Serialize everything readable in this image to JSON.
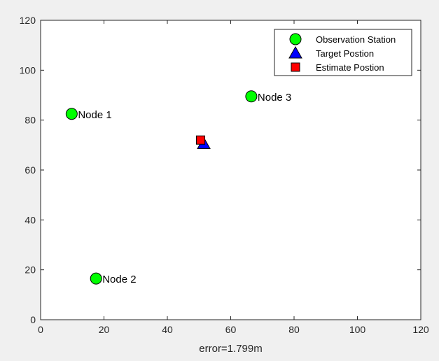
{
  "chart_data": {
    "type": "scatter",
    "title": "",
    "xlabel": "error=1.799m",
    "ylabel": "",
    "xlim": [
      0,
      120
    ],
    "ylim": [
      0,
      120
    ],
    "xticks": [
      0,
      20,
      40,
      60,
      80,
      100,
      120
    ],
    "yticks": [
      0,
      20,
      40,
      60,
      80,
      100,
      120
    ],
    "grid": false,
    "legend_position": "top-right",
    "series": [
      {
        "name": "Observation Station",
        "marker": "circle",
        "color": "#00ff00",
        "points": [
          {
            "x": 9.8,
            "y": 82.5,
            "label": "Node 1"
          },
          {
            "x": 17.5,
            "y": 16.5,
            "label": "Node 2"
          },
          {
            "x": 66.5,
            "y": 89.5,
            "label": "Node 3"
          }
        ]
      },
      {
        "name": "Target Postion",
        "marker": "triangle",
        "color": "#0000ff",
        "points": [
          {
            "x": 51.5,
            "y": 70.5
          }
        ]
      },
      {
        "name": "Estimate Postion",
        "marker": "square",
        "color": "#ff0000",
        "points": [
          {
            "x": 50.5,
            "y": 72.0
          }
        ]
      }
    ]
  }
}
